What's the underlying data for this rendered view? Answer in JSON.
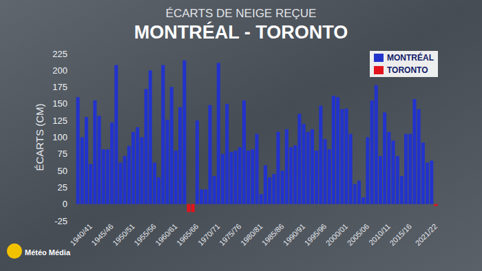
{
  "chart_data": {
    "type": "bar",
    "title": "MONTRÉAL - TORONTO",
    "subtitle": "ÉCARTS DE NEIGE REÇUE",
    "y_label": "ÉCARTS (CM)",
    "annotation": "Météo Média",
    "categories": [
      null,
      null,
      null,
      "1940/41",
      null,
      null,
      null,
      null,
      "1945/46",
      null,
      null,
      null,
      null,
      "1950/51",
      null,
      null,
      null,
      null,
      "1955/56",
      null,
      null,
      null,
      null,
      "1960/61",
      null,
      null,
      null,
      null,
      "1965/66",
      null,
      null,
      null,
      null,
      "1970/71",
      null,
      null,
      null,
      null,
      "1975/76",
      null,
      null,
      null,
      null,
      "1980/81",
      null,
      null,
      null,
      null,
      "1985/86",
      null,
      null,
      null,
      null,
      "1990/91",
      null,
      null,
      null,
      null,
      "1995/96",
      null,
      null,
      null,
      null,
      "2000/01",
      null,
      null,
      null,
      null,
      "2005/06",
      null,
      null,
      null,
      null,
      "2010/11",
      null,
      null,
      null,
      null,
      "2015/16",
      null,
      null,
      null,
      null,
      null,
      "2021/22"
    ],
    "series": [
      {
        "name": "MONTRÉAL",
        "color": "#2233cc",
        "values": [
          160,
          100,
          130,
          60,
          155,
          132,
          82,
          82,
          122,
          208,
          62,
          72,
          87,
          108,
          115,
          100,
          172,
          200,
          62,
          40,
          208,
          126,
          175,
          80,
          145,
          215,
          null,
          null,
          125,
          22,
          22,
          148,
          42,
          211,
          75,
          150,
          78,
          80,
          85,
          155,
          80,
          82,
          105,
          15,
          58,
          40,
          45,
          108,
          50,
          112,
          85,
          88,
          135,
          120,
          108,
          112,
          80,
          147,
          97,
          82,
          162,
          160,
          142,
          143,
          105,
          30,
          35,
          10,
          100,
          155,
          178,
          72,
          137,
          108,
          95,
          72,
          42,
          105,
          105,
          157,
          142,
          92,
          62,
          65,
          null
        ]
      },
      {
        "name": "TORONTO",
        "color": "#e3141c",
        "values": [
          null,
          null,
          null,
          null,
          null,
          null,
          null,
          null,
          null,
          null,
          null,
          null,
          null,
          null,
          null,
          null,
          null,
          null,
          null,
          null,
          null,
          null,
          null,
          null,
          null,
          null,
          -12,
          -12,
          null,
          null,
          null,
          null,
          null,
          null,
          null,
          null,
          null,
          null,
          null,
          null,
          null,
          null,
          null,
          null,
          null,
          null,
          null,
          null,
          null,
          null,
          null,
          null,
          null,
          null,
          null,
          null,
          null,
          null,
          null,
          null,
          null,
          null,
          null,
          null,
          null,
          null,
          null,
          null,
          null,
          null,
          null,
          null,
          null,
          null,
          null,
          null,
          null,
          null,
          null,
          null,
          null,
          null,
          null,
          null,
          -3
        ]
      }
    ],
    "ylim": [
      -25,
      225
    ],
    "yticks": [
      -25,
      0,
      25,
      50,
      75,
      100,
      125,
      150,
      175,
      200,
      225
    ],
    "grid": false,
    "legend": "upper right",
    "stacked": true
  }
}
